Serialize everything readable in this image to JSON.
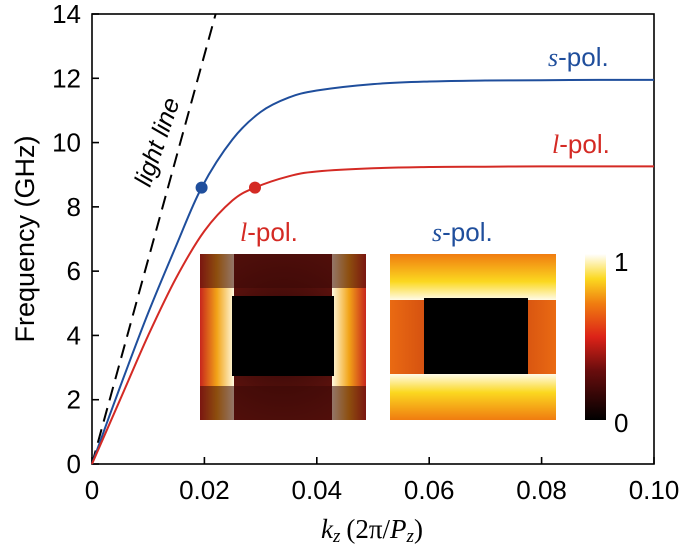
{
  "chart_data": {
    "type": "line",
    "xlabel_var": "k",
    "xlabel_sub": "z",
    "xlabel_paren_open": "(2π/",
    "xlabel_P": "P",
    "xlabel_psub": "z",
    "xlabel_paren_close": ")",
    "ylabel": "Frequency (GHz)",
    "xlim": [
      0,
      0.1
    ],
    "ylim": [
      0,
      14
    ],
    "xticks": [
      0,
      0.02,
      0.04,
      0.06,
      0.08,
      0.1
    ],
    "xtick_labels": [
      "0",
      "0.02",
      "0.04",
      "0.06",
      "0.08",
      "0.10"
    ],
    "yticks": [
      0,
      2,
      4,
      6,
      8,
      10,
      12,
      14
    ],
    "ytick_labels": [
      "0",
      "2",
      "4",
      "6",
      "8",
      "10",
      "12",
      "14"
    ],
    "series": [
      {
        "name": "s-pol.",
        "label_letter": "s",
        "label_rest": "-pol.",
        "color": "#1f4e9c",
        "x": [
          0,
          0.005,
          0.01,
          0.015,
          0.0195,
          0.025,
          0.03,
          0.035,
          0.04,
          0.05,
          0.06,
          0.07,
          0.08,
          0.09,
          0.1
        ],
        "y": [
          0,
          2.4,
          4.7,
          6.8,
          8.6,
          10.1,
          10.95,
          11.4,
          11.62,
          11.82,
          11.9,
          11.93,
          11.94,
          11.95,
          11.95
        ]
      },
      {
        "name": "l-pol.",
        "label_letter": "l",
        "label_rest": "-pol.",
        "color": "#d42a24",
        "x": [
          0,
          0.005,
          0.01,
          0.015,
          0.02,
          0.025,
          0.029,
          0.035,
          0.04,
          0.05,
          0.06,
          0.07,
          0.08,
          0.09,
          0.1
        ],
        "y": [
          0,
          2.0,
          4.0,
          5.8,
          7.25,
          8.2,
          8.6,
          8.95,
          9.1,
          9.2,
          9.24,
          9.25,
          9.26,
          9.26,
          9.26
        ]
      }
    ],
    "markers": [
      {
        "series": "s-pol.",
        "x": 0.0195,
        "y": 8.6,
        "color": "#1f4e9c"
      },
      {
        "series": "l-pol.",
        "x": 0.029,
        "y": 8.6,
        "color": "#d42a24"
      }
    ],
    "light_line": {
      "label": "light line",
      "x": [
        0,
        0.022
      ],
      "y": [
        0,
        14
      ]
    },
    "insets": [
      {
        "label_letter": "l",
        "label_rest": "-pol.",
        "label_color": "#d42a24"
      },
      {
        "label_letter": "s",
        "label_rest": "-pol.",
        "label_color": "#1f4e9c"
      }
    ],
    "colorbar": {
      "max_label": "1",
      "min_label": "0"
    }
  }
}
